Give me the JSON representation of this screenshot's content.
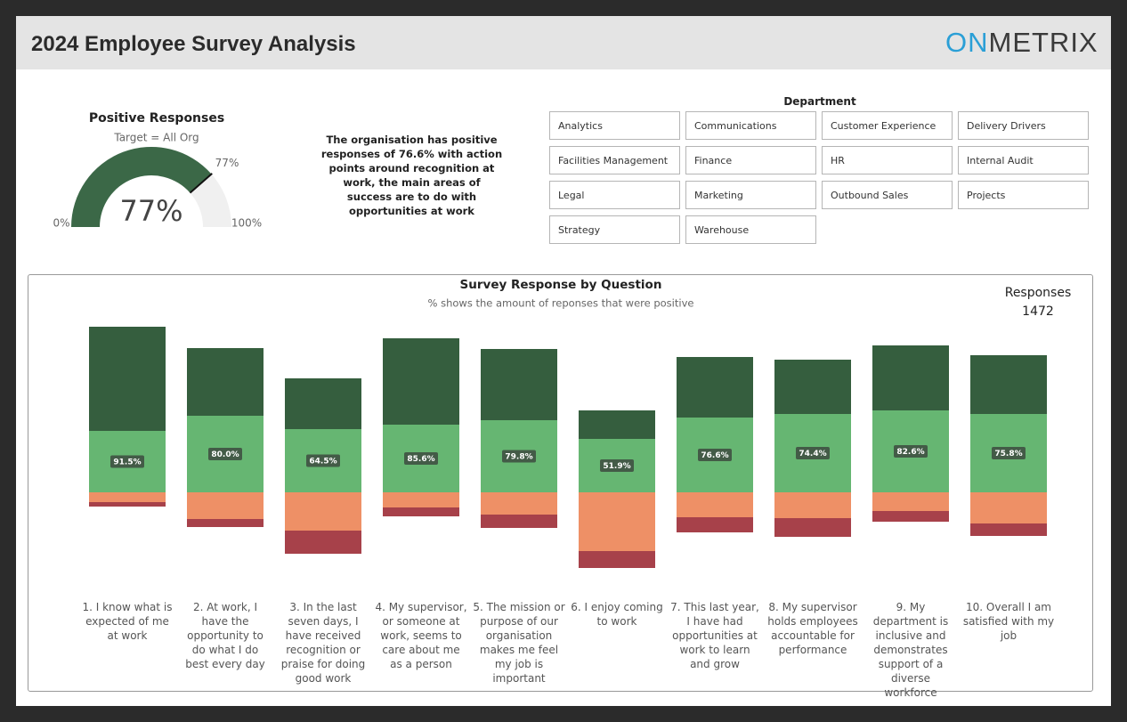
{
  "header": {
    "title": "2024 Employee Survey Analysis",
    "logo": [
      "ON",
      "METRIX"
    ]
  },
  "summary": "The organisation has positive responses of 76.6% with action points around recognition at work, the main areas of success are to do with opportunities at work",
  "department_filter": {
    "title": "Department",
    "options": [
      "Analytics",
      "Communications",
      "Customer Experience",
      "Delivery Drivers",
      "Facilities Management",
      "Finance",
      "HR",
      "Internal Audit",
      "Legal",
      "Marketing",
      "Outbound Sales",
      "Projects",
      "Strategy",
      "Warehouse"
    ]
  },
  "responses": {
    "label": "Responses",
    "value": "1472"
  },
  "chart_data": [
    {
      "type": "gauge",
      "title": "Positive Responses",
      "subtitle": "Target = All Org",
      "value": 77,
      "value_label": "77%",
      "min": 0,
      "min_label": "0%",
      "max": 100,
      "max_label": "100%",
      "target": 77,
      "target_label": "77%",
      "color": "#3b6847",
      "track_color": "#f0f0f0"
    },
    {
      "type": "diverging_bar",
      "title": "Survey Response by Question",
      "subtitle": "% shows the amount of reponses that were positive",
      "categories": [
        "1. I know what is expected of me at work",
        "2. At work, I have the opportunity to do what I do best every day",
        "3. In the last seven days, I have received recognition or praise for doing good work",
        "4. My supervisor, or someone at work, seems to care about me as a person",
        "5. The mission or purpose of our organisation makes me feel my job is important",
        "6. I enjoy coming to work",
        "7. This last year, I have had opportunities at work to learn and grow",
        "8. My supervisor holds employees accountable for performance",
        "9. My department is inclusive and demonstrates support of a diverse workforce",
        "10. Overall I am satisfied with my job"
      ],
      "series": [
        {
          "color": "#66b672",
          "values": [
            34.5,
            43,
            35.5,
            38,
            40.5,
            30,
            42,
            44,
            46,
            44
          ]
        },
        {
          "color": "#355e3e",
          "values": [
            58.5,
            38,
            28.5,
            48.5,
            40,
            16,
            34,
            30.5,
            36.5,
            33
          ]
        },
        {
          "color": "#ee9066",
          "values": [
            -5.5,
            -15,
            -21.5,
            -8.5,
            -12.5,
            -33,
            -14,
            -14.5,
            -10.5,
            -17.5
          ]
        },
        {
          "color": "#a7414a",
          "values": [
            -2.5,
            -4.5,
            -13,
            -5,
            -7.5,
            -9.5,
            -8.5,
            -10.5,
            -6,
            -7
          ]
        }
      ],
      "positive_labels": [
        "91.5%",
        "80.0%",
        "64.5%",
        "85.6%",
        "79.8%",
        "51.9%",
        "76.6%",
        "74.4%",
        "82.6%",
        "75.8%"
      ],
      "ylim": [
        -50,
        100
      ]
    }
  ]
}
